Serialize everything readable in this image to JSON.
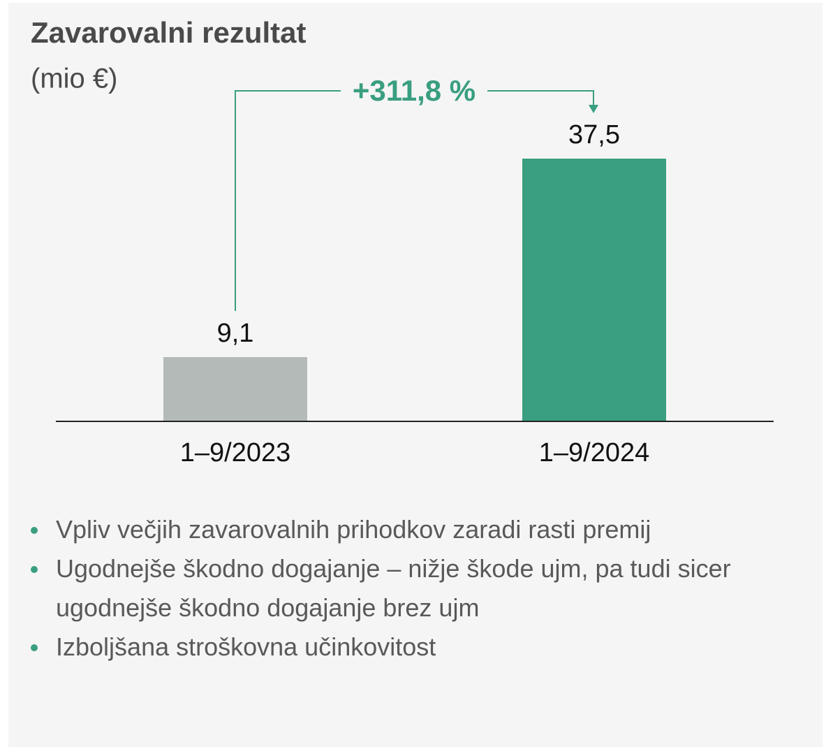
{
  "chart_data": {
    "type": "bar",
    "title": "Zavarovalni rezultat",
    "subtitle": "(mio €)",
    "categories": [
      "1–9/2023",
      "1–9/2024"
    ],
    "values": [
      9.1,
      37.5
    ],
    "value_labels": [
      "9,1",
      "37,5"
    ],
    "colors": [
      "#b4bab8",
      "#3a9e80"
    ],
    "annotation": "+311,8 %"
  },
  "notes": [
    "Vpliv večjih zavarovalnih prihodkov zaradi rasti premij",
    "Ugodnejše škodno dogajanje – nižje škode ujm, pa tudi sicer ugodnejše škodno dogajanje brez ujm",
    "Izboljšana stroškovna učinkovitost"
  ]
}
